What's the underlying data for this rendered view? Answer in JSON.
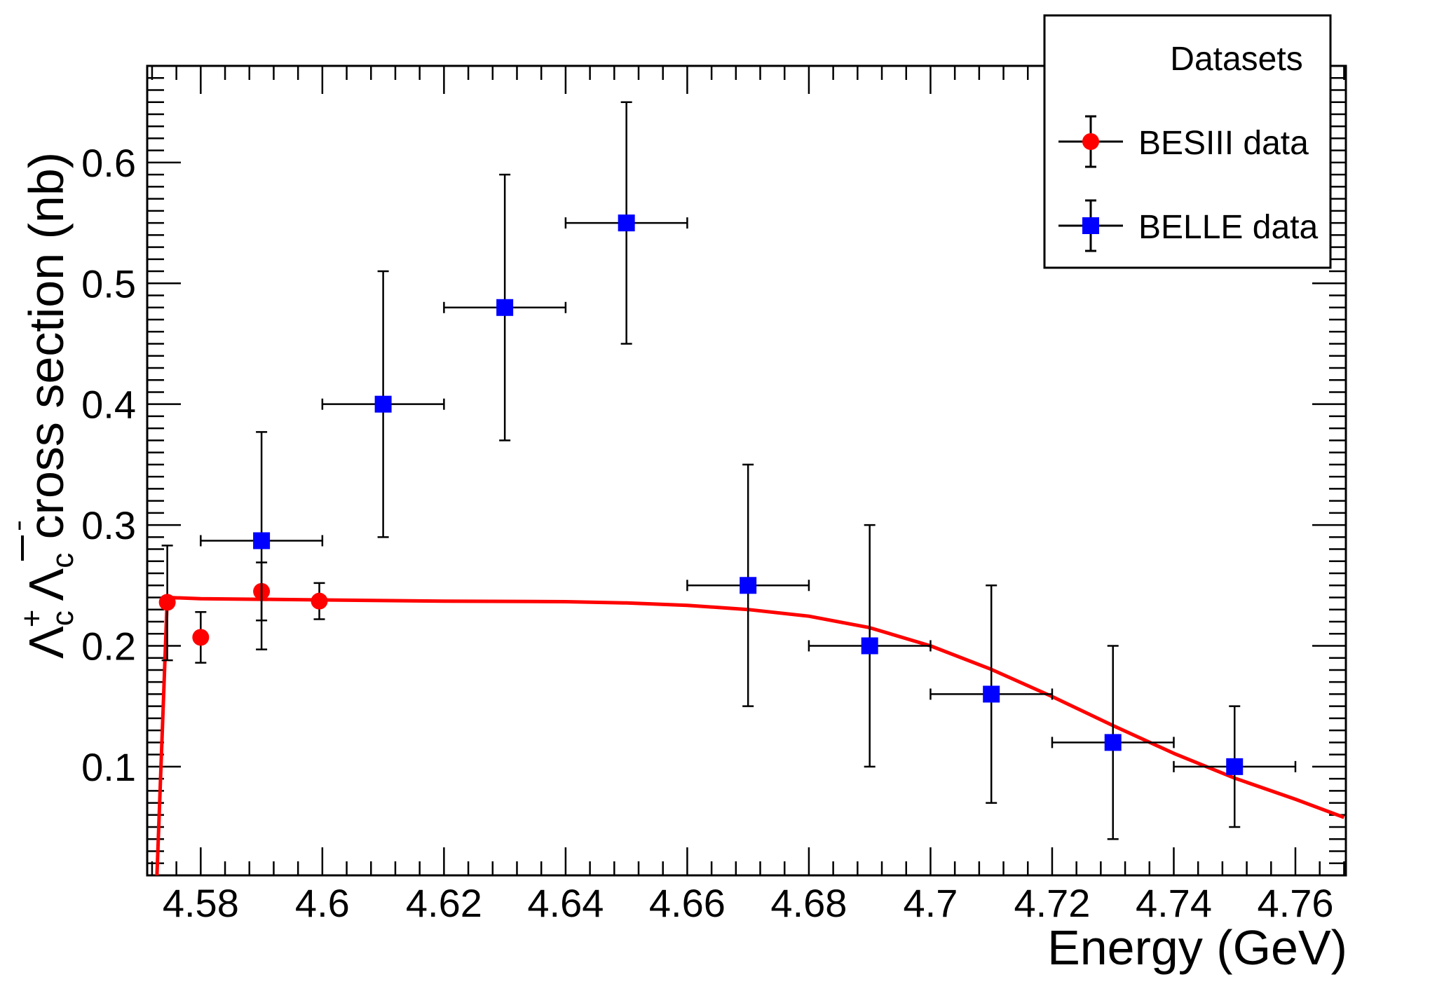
{
  "chart_data": {
    "type": "scatter",
    "title": "",
    "xlabel": "Energy (GeV)",
    "ylabel": {
      "lambda": "Λ",
      "plus": "+",
      "c": "c",
      "rest": " cross section (nb)"
    },
    "xlim": [
      4.5712,
      4.7683
    ],
    "ylim": [
      0.01,
      0.68
    ],
    "xticks": [
      4.58,
      4.6,
      4.62,
      4.64,
      4.66,
      4.68,
      4.7,
      4.72,
      4.74,
      4.76
    ],
    "xtick_labels": [
      "4.58",
      "4.6",
      "4.62",
      "4.64",
      "4.66",
      "4.68",
      "4.7",
      "4.72",
      "4.74",
      "4.76"
    ],
    "yticks": [
      0.1,
      0.2,
      0.3,
      0.4,
      0.5,
      0.6
    ],
    "ytick_labels": [
      "0.1",
      "0.2",
      "0.3",
      "0.4",
      "0.5",
      "0.6"
    ],
    "legend": {
      "title": "Datasets",
      "position": "top-right",
      "entries": [
        "BESIII data",
        "BELLE data"
      ]
    },
    "series": [
      {
        "name": "BESIII data",
        "marker": "circle",
        "color": "#ff0000",
        "points": [
          {
            "x": 4.5745,
            "y": 0.236,
            "yerr_lo": 0.048,
            "yerr_hi": 0.047
          },
          {
            "x": 4.58,
            "y": 0.207,
            "yerr_lo": 0.021,
            "yerr_hi": 0.021
          },
          {
            "x": 4.59,
            "y": 0.245,
            "yerr_lo": 0.024,
            "yerr_hi": 0.024
          },
          {
            "x": 4.5995,
            "y": 0.237,
            "yerr_lo": 0.015,
            "yerr_hi": 0.015
          }
        ]
      },
      {
        "name": "BELLE data",
        "marker": "square",
        "color": "#0000ff",
        "points": [
          {
            "x": 4.59,
            "y": 0.287,
            "xerr": 0.01,
            "yerr_lo": 0.09,
            "yerr_hi": 0.09
          },
          {
            "x": 4.61,
            "y": 0.4,
            "xerr": 0.01,
            "yerr_lo": 0.11,
            "yerr_hi": 0.11
          },
          {
            "x": 4.63,
            "y": 0.48,
            "xerr": 0.01,
            "yerr_lo": 0.11,
            "yerr_hi": 0.11
          },
          {
            "x": 4.65,
            "y": 0.55,
            "xerr": 0.01,
            "yerr_lo": 0.1,
            "yerr_hi": 0.1
          },
          {
            "x": 4.67,
            "y": 0.25,
            "xerr": 0.01,
            "yerr_lo": 0.1,
            "yerr_hi": 0.1
          },
          {
            "x": 4.69,
            "y": 0.2,
            "xerr": 0.01,
            "yerr_lo": 0.1,
            "yerr_hi": 0.1
          },
          {
            "x": 4.71,
            "y": 0.16,
            "xerr": 0.01,
            "yerr_lo": 0.09,
            "yerr_hi": 0.09
          },
          {
            "x": 4.73,
            "y": 0.12,
            "xerr": 0.01,
            "yerr_lo": 0.08,
            "yerr_hi": 0.08
          },
          {
            "x": 4.75,
            "y": 0.1,
            "xerr": 0.01,
            "yerr_lo": 0.05,
            "yerr_hi": 0.05
          }
        ]
      }
    ],
    "fit_curve": {
      "name": "fit",
      "color": "#ff0000",
      "points": [
        [
          4.5728,
          0.01
        ],
        [
          4.5745,
          0.24
        ],
        [
          4.58,
          0.239
        ],
        [
          4.6,
          0.238
        ],
        [
          4.62,
          0.237
        ],
        [
          4.64,
          0.2365
        ],
        [
          4.65,
          0.2355
        ],
        [
          4.66,
          0.2335
        ],
        [
          4.67,
          0.23
        ],
        [
          4.68,
          0.2245
        ],
        [
          4.69,
          0.215
        ],
        [
          4.7,
          0.2
        ],
        [
          4.71,
          0.1805
        ],
        [
          4.72,
          0.158
        ],
        [
          4.73,
          0.134
        ],
        [
          4.74,
          0.111
        ],
        [
          4.75,
          0.0905
        ],
        [
          4.76,
          0.073
        ],
        [
          4.768,
          0.058
        ]
      ]
    }
  }
}
